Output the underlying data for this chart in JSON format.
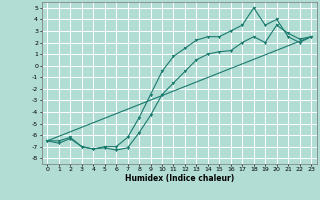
{
  "xlabel": "Humidex (Indice chaleur)",
  "bg_color": "#b2ddd4",
  "grid_color": "#ffffff",
  "line_color": "#1a7a6e",
  "xlim": [
    -0.5,
    23.5
  ],
  "ylim": [
    -8.5,
    5.5
  ],
  "xticks": [
    0,
    1,
    2,
    3,
    4,
    5,
    6,
    7,
    8,
    9,
    10,
    11,
    12,
    13,
    14,
    15,
    16,
    17,
    18,
    19,
    20,
    21,
    22,
    23
  ],
  "yticks": [
    -8,
    -7,
    -6,
    -5,
    -4,
    -3,
    -2,
    -1,
    0,
    1,
    2,
    3,
    4,
    5
  ],
  "line1_x": [
    0,
    1,
    2,
    3,
    4,
    5,
    6,
    7,
    8,
    9,
    10,
    11,
    12,
    13,
    14,
    15,
    16,
    17,
    18,
    19,
    20,
    21,
    22,
    23
  ],
  "line1_y": [
    -6.5,
    -6.7,
    -6.3,
    -7.0,
    -7.2,
    -7.1,
    -7.3,
    -7.1,
    -5.8,
    -4.3,
    -2.5,
    -1.5,
    -0.5,
    0.5,
    1.0,
    1.2,
    1.3,
    2.0,
    2.5,
    2.0,
    3.5,
    2.8,
    2.3,
    2.5
  ],
  "line2_x": [
    0,
    1,
    2,
    3,
    4,
    5,
    6,
    7,
    8,
    9,
    10,
    11,
    12,
    13,
    14,
    15,
    16,
    17,
    18,
    19,
    20,
    21,
    22,
    23
  ],
  "line2_y": [
    -6.5,
    -6.5,
    -6.2,
    -7.0,
    -7.2,
    -7.0,
    -7.0,
    -6.2,
    -4.5,
    -2.5,
    -0.5,
    0.8,
    1.5,
    2.2,
    2.5,
    2.5,
    3.0,
    3.5,
    5.0,
    3.5,
    4.0,
    2.5,
    2.0,
    2.5
  ],
  "line3_x": [
    0,
    23
  ],
  "line3_y": [
    -6.5,
    2.5
  ]
}
